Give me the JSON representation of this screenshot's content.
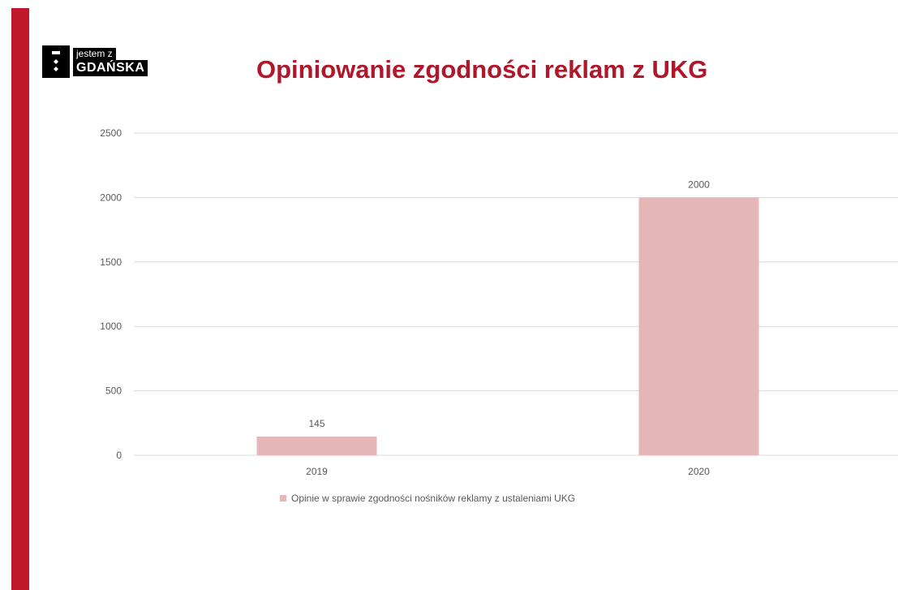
{
  "logo": {
    "top_text": "jestem z",
    "bottom_text": "GDAŃSKA"
  },
  "colors": {
    "brand": "#c0182a",
    "title": "#b0172a",
    "bar": "#e6b7b8",
    "grid": "#d9d9d9",
    "text": "#595959"
  },
  "chart_data": {
    "type": "bar",
    "title": "Opiniowanie zgodności reklam z UKG",
    "categories": [
      "2019",
      "2020"
    ],
    "series": [
      {
        "name": "Opinie w sprawie zgodności nośników reklamy z ustaleniami UKG",
        "values": [
          145,
          2000
        ]
      }
    ],
    "data_labels": [
      "145",
      "2000"
    ],
    "ylim": [
      0,
      2500
    ],
    "yticks": [
      0,
      500,
      1000,
      1500,
      2000,
      2500
    ],
    "grid": true,
    "legend": "bottom",
    "xlabel": "",
    "ylabel": ""
  }
}
